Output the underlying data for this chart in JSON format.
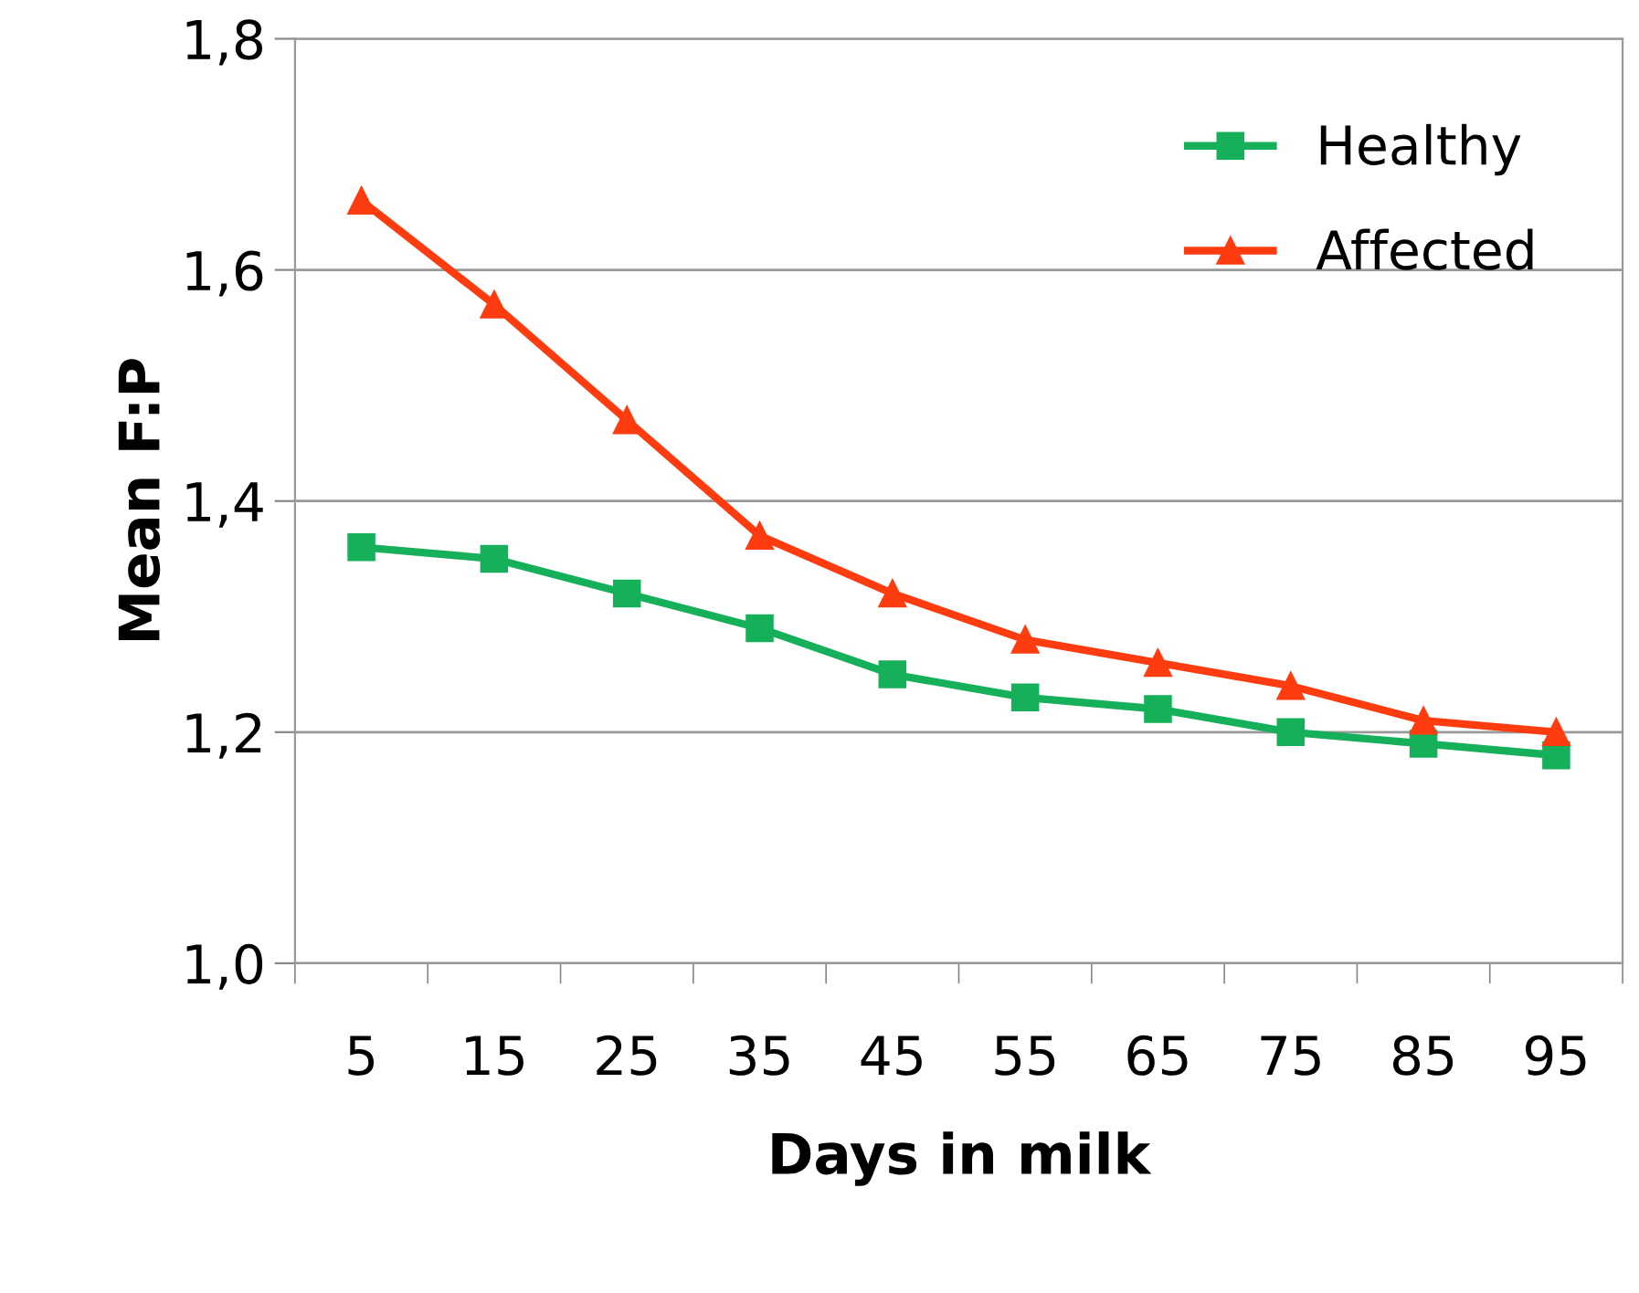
{
  "chart_data": {
    "type": "line",
    "xlabel": "Days in milk",
    "ylabel": "Mean F:P",
    "categories": [
      "5",
      "15",
      "25",
      "35",
      "45",
      "55",
      "65",
      "75",
      "85",
      "95"
    ],
    "series": [
      {
        "name": "Healthy",
        "color": "#17b05a",
        "marker": "square",
        "values": [
          1.36,
          1.35,
          1.32,
          1.29,
          1.25,
          1.23,
          1.22,
          1.2,
          1.19,
          1.18
        ]
      },
      {
        "name": "Affected",
        "color": "#ff3c0f",
        "marker": "triangle",
        "values": [
          1.66,
          1.57,
          1.47,
          1.37,
          1.32,
          1.28,
          1.26,
          1.24,
          1.21,
          1.2
        ]
      }
    ],
    "ylim": [
      1.0,
      1.8
    ],
    "yticks": [
      {
        "value": 1.0,
        "label": "1,0"
      },
      {
        "value": 1.2,
        "label": "1,2"
      },
      {
        "value": 1.4,
        "label": "1,4"
      },
      {
        "value": 1.6,
        "label": "1,6"
      },
      {
        "value": 1.8,
        "label": "1,8"
      }
    ],
    "grid": "y",
    "legend": "top right",
    "line_style": "solid"
  }
}
